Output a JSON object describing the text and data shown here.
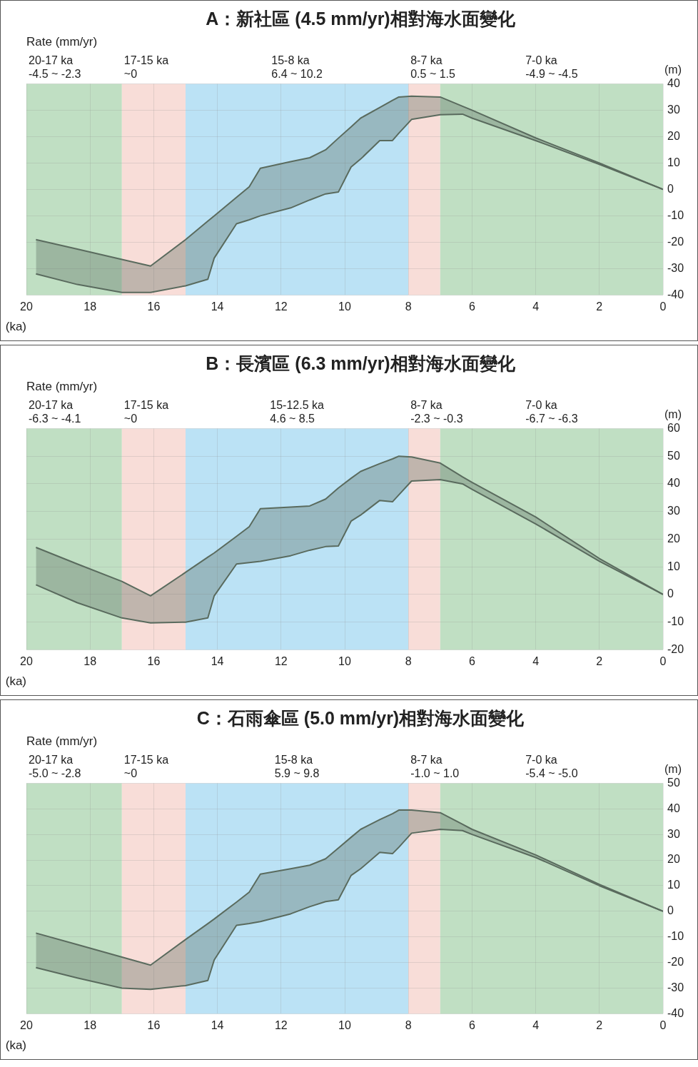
{
  "chart_data": [
    {
      "type": "line",
      "title": "A：新社區 (4.5 mm/yr)相對海水面變化",
      "subtitle": "Rate (mm/yr)",
      "xlabel": "(ka)",
      "ylabel": "(m)",
      "xlim": [
        20,
        0
      ],
      "xticks": [
        20,
        18,
        16,
        14,
        12,
        10,
        8,
        6,
        4,
        2,
        0
      ],
      "ylim": [
        -40,
        40
      ],
      "yticks": [
        -40,
        -30,
        -20,
        -10,
        0,
        10,
        20,
        30,
        40
      ],
      "grid": true,
      "marker": "none",
      "bands": [
        {
          "axis": "x",
          "from": 20,
          "to": 17,
          "label": "20-17 ka\n-4.5 ~ -2.3",
          "color": "#c0dfc3"
        },
        {
          "axis": "x",
          "from": 17,
          "to": 15,
          "label": "17-15 ka\n~0",
          "color": "#f8ddd8"
        },
        {
          "axis": "x",
          "from": 15,
          "to": 8,
          "label": "15-8 ka\n6.4 ~ 10.2",
          "color": "#bbe2f5"
        },
        {
          "axis": "x",
          "from": 8,
          "to": 7,
          "label": "8-7 ka\n0.5 ~ 1.5",
          "color": "#f8ddd8"
        },
        {
          "axis": "x",
          "from": 7,
          "to": 0,
          "label": "7-0 ka\n-4.9 ~ -4.5",
          "color": "#c0dfc3"
        }
      ],
      "series": [
        {
          "color": "#5a6b5e",
          "x": [
            19.7,
            18.4,
            17.0,
            16.1,
            15.0,
            14.3,
            14.1,
            13.4,
            13.0,
            12.65,
            11.7,
            11.1,
            10.6,
            10.2,
            9.8,
            9.5,
            8.9,
            8.5,
            8.3,
            7.9,
            7.0,
            6.3,
            6.0,
            4.0,
            2.0,
            0
          ],
          "values": [
            -19,
            -22.6,
            -26.5,
            -29,
            -19,
            -12,
            -10,
            -3,
            1,
            8,
            10.5,
            12,
            15,
            19.4,
            23.7,
            27,
            31,
            33.7,
            35,
            35.3,
            35,
            31.5,
            30,
            19.5,
            10,
            0
          ],
          "upper": [
            -19,
            -22.6,
            -26.5,
            -29,
            -19,
            -12,
            -10,
            -3,
            1,
            8,
            10.5,
            12,
            15,
            19.4,
            23.7,
            27,
            31,
            33.7,
            35,
            35.3,
            35,
            31.5,
            30,
            19.5,
            10,
            0
          ],
          "lower": [
            -32,
            -36,
            -39,
            -39,
            -36.5,
            -34,
            -26,
            -13,
            -11.5,
            -10,
            -7,
            -4,
            -1.7,
            -1,
            8.5,
            11.5,
            18.5,
            18.5,
            21.3,
            26.5,
            28.3,
            28.5,
            27,
            18.5,
            9.5,
            0
          ]
        },
        {
          "color": "#5a6b5e",
          "x": [
            19.7,
            18.4,
            17.0,
            16.1,
            15.0,
            14.3,
            14.1,
            13.4,
            13.0,
            12.65,
            11.7,
            11.1,
            10.6,
            10.2,
            9.8,
            9.5,
            8.9,
            8.5,
            8.3,
            7.9,
            7.0,
            6.3,
            6.0,
            4.0,
            2.0,
            0
          ],
          "values": [
            -32,
            -36,
            -39,
            -39,
            -36.5,
            -34,
            -26,
            -13,
            -11.5,
            -10,
            -7,
            -4,
            -1.7,
            -1,
            8.5,
            11.5,
            18.5,
            18.5,
            21.3,
            26.5,
            28.3,
            28.5,
            27,
            18.5,
            9.5,
            0
          ]
        }
      ]
    },
    {
      "type": "line",
      "title": "B：長濱區 (6.3 mm/yr)相對海水面變化",
      "subtitle": "Rate (mm/yr)",
      "xlabel": "(ka)",
      "ylabel": "(m)",
      "xlim": [
        20,
        0
      ],
      "xticks": [
        20,
        18,
        16,
        14,
        12,
        10,
        8,
        6,
        4,
        2,
        0
      ],
      "ylim": [
        -20,
        60
      ],
      "yticks": [
        -20,
        -10,
        0,
        10,
        20,
        30,
        40,
        50,
        60
      ],
      "grid": true,
      "marker": "none",
      "bands": [
        {
          "axis": "x",
          "from": 20,
          "to": 17,
          "label": "20-17 ka\n-6.3 ~ -4.1",
          "color": "#c0dfc3"
        },
        {
          "axis": "x",
          "from": 17,
          "to": 15,
          "label": "17-15 ka\n~0",
          "color": "#f8ddd8"
        },
        {
          "axis": "x",
          "from": 15,
          "to": 8,
          "label": "15-12.5 ka\n4.6 ~ 8.5",
          "color": "#bbe2f5"
        },
        {
          "axis": "x",
          "from": 8,
          "to": 7,
          "label": "8-7 ka\n-2.3 ~ -0.3",
          "color": "#f8ddd8"
        },
        {
          "axis": "x",
          "from": 7,
          "to": 0,
          "label": "7-0 ka\n-6.7 ~ -6.3",
          "color": "#c0dfc3"
        }
      ],
      "series": [
        {
          "color": "#5a6b5e",
          "x": [
            19.7,
            18.4,
            17.0,
            16.1,
            15.0,
            14.3,
            14.1,
            13.4,
            13.0,
            12.65,
            11.7,
            11.1,
            10.6,
            10.2,
            9.8,
            9.5,
            8.9,
            8.5,
            8.3,
            7.9,
            7.0,
            6.3,
            6.0,
            4.0,
            2.0,
            0
          ],
          "values": [
            17,
            11,
            4.7,
            -0.5,
            8,
            13.5,
            15,
            21,
            24.5,
            31,
            31.6,
            32,
            34.5,
            38.5,
            42,
            44.5,
            47.3,
            49,
            50,
            49.7,
            47.5,
            42.5,
            40.5,
            28,
            13,
            0
          ],
          "upper": [
            17,
            11,
            4.7,
            -0.5,
            8,
            13.5,
            15,
            21,
            24.5,
            31,
            31.6,
            32,
            34.5,
            38.5,
            42,
            44.5,
            47.3,
            49,
            50,
            49.7,
            47.5,
            42.5,
            40.5,
            28,
            13,
            0
          ],
          "lower": [
            3.5,
            -3,
            -8.5,
            -10.3,
            -10,
            -8.5,
            -0.5,
            11,
            11.5,
            12,
            14,
            16,
            17.3,
            17.5,
            26.5,
            28.7,
            34,
            33.5,
            36,
            41,
            41.5,
            40,
            38,
            25.5,
            12,
            0
          ]
        },
        {
          "color": "#5a6b5e",
          "x": [
            19.7,
            18.4,
            17.0,
            16.1,
            15.0,
            14.3,
            14.1,
            13.4,
            13.0,
            12.65,
            11.7,
            11.1,
            10.6,
            10.2,
            9.8,
            9.5,
            8.9,
            8.5,
            8.3,
            7.9,
            7.0,
            6.3,
            6.0,
            4.0,
            2.0,
            0
          ],
          "values": [
            3.5,
            -3,
            -8.5,
            -10.3,
            -10,
            -8.5,
            -0.5,
            11,
            11.5,
            12,
            14,
            16,
            17.3,
            17.5,
            26.5,
            28.7,
            34,
            33.5,
            36,
            41,
            41.5,
            40,
            38,
            25.5,
            12,
            0
          ]
        }
      ]
    },
    {
      "type": "line",
      "title": "C：石雨傘區 (5.0 mm/yr)相對海水面變化",
      "subtitle": "Rate (mm/yr)",
      "xlabel": "(ka)",
      "ylabel": "(m)",
      "xlim": [
        20,
        0
      ],
      "xticks": [
        20,
        18,
        16,
        14,
        12,
        10,
        8,
        6,
        4,
        2,
        0
      ],
      "ylim": [
        -40,
        50
      ],
      "yticks": [
        -40,
        -30,
        -20,
        -10,
        0,
        10,
        20,
        30,
        40,
        50
      ],
      "grid": true,
      "marker": "none",
      "bands": [
        {
          "axis": "x",
          "from": 20,
          "to": 17,
          "label": "20-17 ka\n-5.0 ~ -2.8",
          "color": "#c0dfc3"
        },
        {
          "axis": "x",
          "from": 17,
          "to": 15,
          "label": "17-15 ka\n~0",
          "color": "#f8ddd8"
        },
        {
          "axis": "x",
          "from": 15,
          "to": 8,
          "label": "15-8 ka\n5.9 ~ 9.8",
          "color": "#bbe2f5"
        },
        {
          "axis": "x",
          "from": 8,
          "to": 7,
          "label": "8-7 ka\n-1.0 ~ 1.0",
          "color": "#f8ddd8"
        },
        {
          "axis": "x",
          "from": 7,
          "to": 0,
          "label": "7-0 ka\n-5.4 ~ -5.0",
          "color": "#c0dfc3"
        }
      ],
      "series": [
        {
          "color": "#5a6b5e",
          "x": [
            19.7,
            18.4,
            17.0,
            16.1,
            15.0,
            14.3,
            14.1,
            13.4,
            13.0,
            12.65,
            11.7,
            11.1,
            10.6,
            10.2,
            9.8,
            9.5,
            8.9,
            8.5,
            8.3,
            7.9,
            7.0,
            6.3,
            6.0,
            4.0,
            2.0,
            0
          ],
          "values": [
            -8.5,
            -13,
            -17.9,
            -21,
            -11,
            -4.8,
            -3,
            3.6,
            7.5,
            14.5,
            16.6,
            18,
            20.5,
            24.7,
            28.9,
            32,
            35.8,
            38.1,
            39.5,
            39.5,
            38.5,
            34,
            32,
            22,
            10.5,
            0
          ],
          "upper": [
            -8.5,
            -13,
            -17.9,
            -21,
            -11,
            -4.8,
            -3,
            3.6,
            7.5,
            14.5,
            16.6,
            18,
            20.5,
            24.7,
            28.9,
            32,
            35.8,
            38.1,
            39.5,
            39.5,
            38.5,
            34,
            32,
            22,
            10.5,
            0
          ],
          "lower": [
            -22,
            -26,
            -30,
            -30.5,
            -29,
            -27,
            -19,
            -5.5,
            -4.8,
            -4,
            -1,
            1.8,
            3.8,
            4.5,
            14,
            16.6,
            23,
            22.5,
            25,
            30.5,
            32,
            31.5,
            30,
            21,
            10,
            0
          ]
        },
        {
          "color": "#5a6b5e",
          "x": [
            19.7,
            18.4,
            17.0,
            16.1,
            15.0,
            14.3,
            14.1,
            13.4,
            13.0,
            12.65,
            11.7,
            11.1,
            10.6,
            10.2,
            9.8,
            9.5,
            8.9,
            8.5,
            8.3,
            7.9,
            7.0,
            6.3,
            6.0,
            4.0,
            2.0,
            0
          ],
          "values": [
            -22,
            -26,
            -30,
            -30.5,
            -29,
            -27,
            -19,
            -5.5,
            -4.8,
            -4,
            -1,
            1.8,
            3.8,
            4.5,
            14,
            16.6,
            23,
            22.5,
            25,
            30.5,
            32,
            31.5,
            30,
            21,
            10,
            0
          ]
        }
      ]
    }
  ]
}
